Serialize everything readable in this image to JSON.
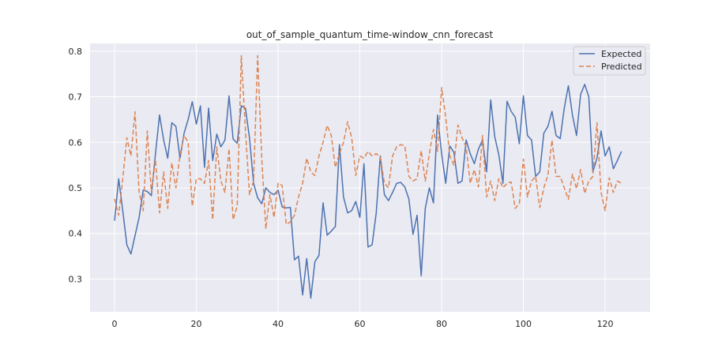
{
  "chart_data": {
    "type": "line",
    "title": "out_of_sample_quantum_time-window_cnn_forecast",
    "xlabel": "",
    "ylabel": "",
    "xlim": [
      -6,
      131
    ],
    "ylim": [
      0.228,
      0.817
    ],
    "xticks": [
      0,
      20,
      40,
      60,
      80,
      100,
      120
    ],
    "yticks": [
      0.3,
      0.4,
      0.5,
      0.6,
      0.7,
      0.8
    ],
    "grid": true,
    "legend_position": "top-right",
    "colors": {
      "background": "#eaeaf2",
      "grid": "#ffffff",
      "expected": "#4c72b0",
      "predicted": "#dd8452"
    },
    "series": [
      {
        "name": "Expected",
        "style": "solid",
        "values": [
          0.428,
          0.52,
          0.45,
          0.375,
          0.355,
          0.395,
          0.435,
          0.495,
          0.492,
          0.483,
          0.575,
          0.66,
          0.605,
          0.565,
          0.643,
          0.635,
          0.565,
          0.62,
          0.65,
          0.689,
          0.64,
          0.68,
          0.545,
          0.675,
          0.56,
          0.618,
          0.59,
          0.605,
          0.702,
          0.607,
          0.598,
          0.68,
          0.675,
          0.61,
          0.51,
          0.478,
          0.465,
          0.5,
          0.49,
          0.485,
          0.495,
          0.458,
          0.456,
          0.457,
          0.342,
          0.35,
          0.265,
          0.345,
          0.258,
          0.338,
          0.352,
          0.467,
          0.396,
          0.405,
          0.415,
          0.595,
          0.48,
          0.445,
          0.45,
          0.47,
          0.435,
          0.553,
          0.37,
          0.375,
          0.445,
          0.57,
          0.485,
          0.472,
          0.49,
          0.51,
          0.512,
          0.502,
          0.475,
          0.398,
          0.44,
          0.307,
          0.455,
          0.5,
          0.467,
          0.66,
          0.575,
          0.51,
          0.592,
          0.578,
          0.51,
          0.515,
          0.605,
          0.575,
          0.553,
          0.585,
          0.605,
          0.535,
          0.693,
          0.612,
          0.572,
          0.51,
          0.69,
          0.668,
          0.655,
          0.597,
          0.702,
          0.615,
          0.605,
          0.525,
          0.535,
          0.62,
          0.635,
          0.668,
          0.615,
          0.608,
          0.675,
          0.724,
          0.66,
          0.615,
          0.705,
          0.727,
          0.7,
          0.535,
          0.565,
          0.625,
          0.57,
          0.59,
          0.542,
          0.56,
          0.58
        ]
      },
      {
        "name": "Predicted",
        "style": "dashed",
        "values": [
          0.476,
          0.44,
          0.52,
          0.61,
          0.57,
          0.667,
          0.49,
          0.45,
          0.625,
          0.49,
          0.562,
          0.445,
          0.535,
          0.455,
          0.555,
          0.5,
          0.572,
          0.615,
          0.6,
          0.46,
          0.52,
          0.52,
          0.51,
          0.56,
          0.43,
          0.59,
          0.515,
          0.49,
          0.586,
          0.43,
          0.46,
          0.79,
          0.628,
          0.485,
          0.515,
          0.79,
          0.565,
          0.41,
          0.485,
          0.435,
          0.51,
          0.505,
          0.42,
          0.425,
          0.44,
          0.48,
          0.51,
          0.565,
          0.535,
          0.527,
          0.57,
          0.6,
          0.637,
          0.615,
          0.545,
          0.575,
          0.6,
          0.645,
          0.61,
          0.527,
          0.57,
          0.565,
          0.58,
          0.57,
          0.575,
          0.568,
          0.51,
          0.5,
          0.57,
          0.59,
          0.595,
          0.592,
          0.525,
          0.515,
          0.52,
          0.582,
          0.515,
          0.575,
          0.628,
          0.58,
          0.72,
          0.655,
          0.57,
          0.55,
          0.638,
          0.61,
          0.59,
          0.51,
          0.54,
          0.502,
          0.615,
          0.48,
          0.515,
          0.472,
          0.52,
          0.5,
          0.51,
          0.513,
          0.455,
          0.465,
          0.563,
          0.48,
          0.515,
          0.525,
          0.457,
          0.5,
          0.528,
          0.605,
          0.525,
          0.525,
          0.5,
          0.475,
          0.53,
          0.498,
          0.54,
          0.488,
          0.515,
          0.525,
          0.643,
          0.49,
          0.45,
          0.522,
          0.49,
          0.515,
          0.51
        ]
      }
    ]
  }
}
